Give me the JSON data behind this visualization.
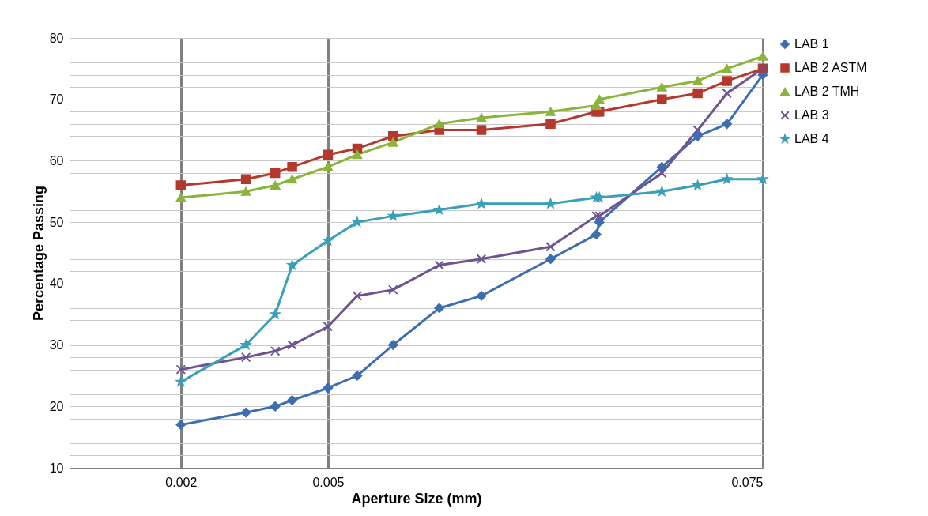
{
  "chart_data": {
    "type": "line",
    "xlabel": "Aperture Size (mm)",
    "ylabel": "Percentage Passing",
    "log": "x",
    "grid": true,
    "legend": "right",
    "xlim": [
      0.001,
      0.075
    ],
    "xticks": [
      0.002,
      0.005,
      0.075
    ],
    "ylim": [
      10,
      80
    ],
    "yticks": [
      10,
      {
        "value": 12,
        "label": null
      },
      {
        "value": 14,
        "label": null
      },
      {
        "value": 16,
        "label": null
      },
      {
        "value": 18,
        "label": null
      },
      20,
      {
        "value": 22,
        "label": null
      },
      {
        "value": 24,
        "label": null
      },
      {
        "value": 26,
        "label": null
      },
      {
        "value": 28,
        "label": null
      },
      30,
      {
        "value": 32,
        "label": null
      },
      {
        "value": 34,
        "label": null
      },
      {
        "value": 36,
        "label": null
      },
      {
        "value": 38,
        "label": null
      },
      40,
      {
        "value": 42,
        "label": null
      },
      {
        "value": 44,
        "label": null
      },
      {
        "value": 46,
        "label": null
      },
      {
        "value": 48,
        "label": null
      },
      50,
      {
        "value": 52,
        "label": null
      },
      {
        "value": 54,
        "label": null
      },
      {
        "value": 56,
        "label": null
      },
      {
        "value": 58,
        "label": null
      },
      60,
      {
        "value": 62,
        "label": null
      },
      {
        "value": 64,
        "label": null
      },
      {
        "value": 66,
        "label": null
      },
      {
        "value": 68,
        "label": null
      },
      70,
      {
        "value": 72,
        "label": null
      },
      {
        "value": 74,
        "label": null
      },
      {
        "value": 76,
        "label": null
      },
      {
        "value": 78,
        "label": null
      },
      80
    ],
    "x": [
      0.002,
      0.003,
      0.0036,
      0.004,
      0.005,
      0.006,
      0.0075,
      0.01,
      0.013,
      0.02,
      0.0266,
      0.0271,
      0.04,
      0.05,
      0.06,
      0.075
    ],
    "series": [
      {
        "name": "LAB 1",
        "color": "#3d6eb0",
        "marker": "diamond",
        "values": [
          17,
          19,
          20,
          21,
          23,
          25,
          30,
          36,
          38,
          44,
          48,
          50,
          59,
          64,
          66,
          74
        ]
      },
      {
        "name": "LAB 2 ASTM",
        "color": "#b3382e",
        "marker": "square",
        "values": [
          56,
          57,
          58,
          59,
          61,
          62,
          64,
          65,
          65,
          66,
          68,
          68,
          70,
          71,
          73,
          75
        ]
      },
      {
        "name": "LAB 2 TMH",
        "color": "#8ab43c",
        "marker": "triangle",
        "values": [
          54,
          55,
          56,
          57,
          59,
          61,
          63,
          66,
          67,
          68,
          69,
          70,
          72,
          73,
          75,
          77
        ]
      },
      {
        "name": "LAB 3",
        "color": "#6f5391",
        "marker": "cross",
        "values": [
          26,
          28,
          29,
          30,
          33,
          38,
          39,
          43,
          44,
          46,
          51,
          51,
          58,
          65,
          71,
          75
        ]
      },
      {
        "name": "LAB 4",
        "color": "#3aa0b8",
        "marker": "star",
        "values": [
          24,
          30,
          35,
          43,
          47,
          50,
          51,
          52,
          53,
          53,
          54,
          54,
          55,
          56,
          57,
          57
        ]
      }
    ]
  }
}
